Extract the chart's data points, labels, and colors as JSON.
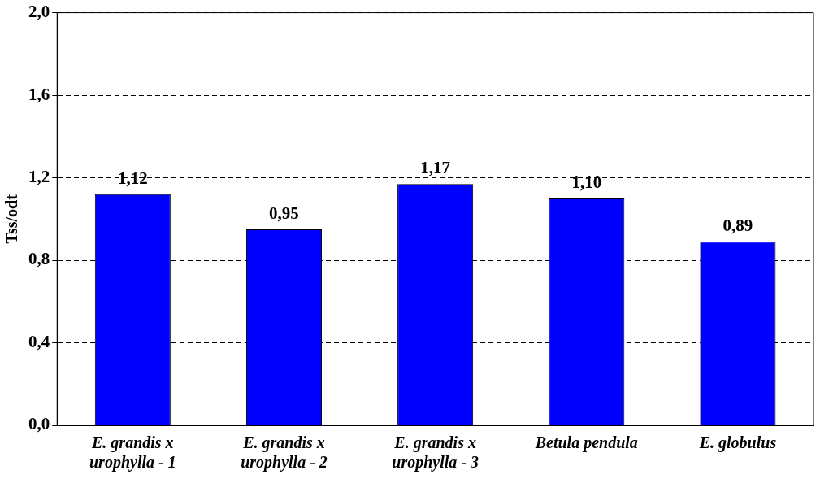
{
  "chart_data": {
    "type": "bar",
    "ylabel": "Tss/odt",
    "categories": [
      "E. grandis x urophylla - 1",
      "E. grandis x urophylla - 2",
      "E. grandis x urophylla - 3",
      "Betula pendula",
      "E. globulus"
    ],
    "values": [
      1.12,
      0.95,
      1.17,
      1.1,
      0.89
    ],
    "value_labels": [
      "1,12",
      "0,95",
      "1,17",
      "1,10",
      "0,89"
    ],
    "color": "#0000ff",
    "ylim": [
      0,
      2
    ],
    "yticks": [
      {
        "value": 0,
        "label": "0,0"
      },
      {
        "value": 0.4,
        "label": "0,4"
      },
      {
        "value": 0.8,
        "label": "0,8"
      },
      {
        "value": 1.2,
        "label": "1,2"
      },
      {
        "value": 1.6,
        "label": "1,6"
      },
      {
        "value": 2,
        "label": "2,0"
      }
    ],
    "grid": "y",
    "legend": false
  }
}
